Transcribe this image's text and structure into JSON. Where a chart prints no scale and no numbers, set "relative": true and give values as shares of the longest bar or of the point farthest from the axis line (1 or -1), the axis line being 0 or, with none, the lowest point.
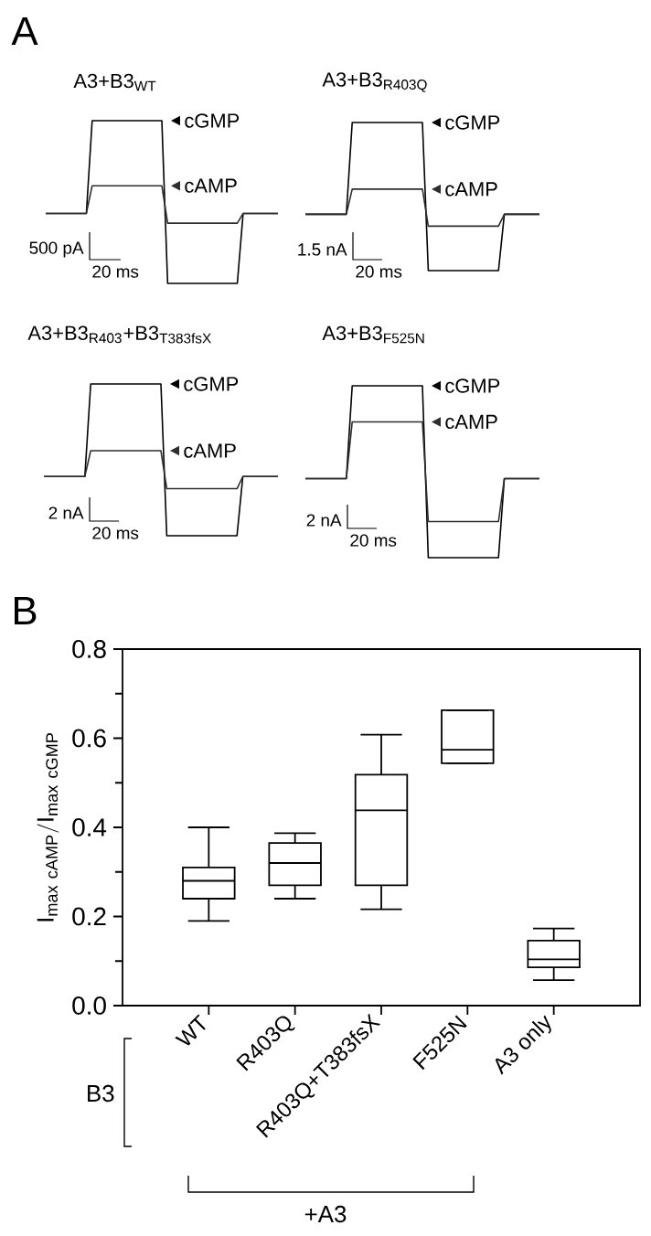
{
  "chart_data": [
    {
      "type": "line",
      "relative": true,
      "legend": "right",
      "title": "A3+B3$_{WT}$",
      "annotations": [
        "A",
        "500 pA",
        "20 ms"
      ],
      "categories": [
        null,
        null,
        null,
        null,
        null,
        null,
        null,
        null,
        null,
        null,
        null,
        null,
        null,
        null,
        null,
        null,
        null,
        null,
        null,
        null,
        null,
        null,
        null,
        null,
        null,
        null,
        null,
        null,
        null,
        null,
        null,
        null,
        null,
        null,
        null,
        null,
        null,
        null,
        null,
        null,
        null
      ],
      "series": [
        {
          "name": "cGMP",
          "color": "#000000",
          "values": [
            0.43,
            0.43,
            0.43,
            0.43,
            0.43,
            0.43,
            0.43,
            0.43,
            1,
            1,
            1,
            1,
            1,
            1,
            1,
            1,
            1,
            1,
            1,
            1,
            1,
            0,
            0,
            0,
            0,
            0,
            0,
            0,
            0,
            0,
            0,
            0,
            0,
            0,
            0.43,
            0.43,
            0.43,
            0.43,
            0.43,
            0.43,
            0.43
          ]
        },
        {
          "name": "cAMP",
          "color": "#2e2e2e",
          "values": [
            0.43,
            0.43,
            0.43,
            0.43,
            0.43,
            0.43,
            0.43,
            0.43,
            0.6,
            0.6,
            0.6,
            0.6,
            0.6,
            0.6,
            0.6,
            0.6,
            0.6,
            0.6,
            0.6,
            0.6,
            0.6,
            0.37,
            0.37,
            0.37,
            0.37,
            0.37,
            0.37,
            0.37,
            0.37,
            0.37,
            0.37,
            0.37,
            0.37,
            0.37,
            0.43,
            0.43,
            0.43,
            0.43,
            0.43,
            0.43,
            0.43
          ]
        }
      ]
    },
    {
      "type": "line",
      "relative": true,
      "legend": "right",
      "title": "A3+B3$_{R403Q}$",
      "annotations": [
        "1.5 nA",
        "20 ms"
      ],
      "categories": [
        null,
        null,
        null,
        null,
        null,
        null,
        null,
        null,
        null,
        null,
        null,
        null,
        null,
        null,
        null,
        null,
        null,
        null,
        null,
        null,
        null,
        null,
        null,
        null,
        null,
        null,
        null,
        null,
        null,
        null,
        null,
        null,
        null,
        null,
        null,
        null,
        null,
        null,
        null,
        null,
        null
      ],
      "series": [
        {
          "name": "cGMP",
          "color": "#000000",
          "values": [
            0.38,
            0.38,
            0.38,
            0.38,
            0.38,
            0.38,
            0.38,
            0.38,
            1,
            1,
            1,
            1,
            1,
            1,
            1,
            1,
            1,
            1,
            1,
            1,
            1,
            0,
            0,
            0,
            0,
            0,
            0,
            0,
            0,
            0,
            0,
            0,
            0,
            0,
            0.38,
            0.38,
            0.38,
            0.38,
            0.38,
            0.38,
            0.38
          ]
        },
        {
          "name": "cAMP",
          "color": "#2e2e2e",
          "values": [
            0.38,
            0.38,
            0.38,
            0.38,
            0.38,
            0.38,
            0.38,
            0.38,
            0.55,
            0.55,
            0.55,
            0.55,
            0.55,
            0.55,
            0.55,
            0.55,
            0.55,
            0.55,
            0.55,
            0.55,
            0.55,
            0.3,
            0.3,
            0.3,
            0.3,
            0.3,
            0.3,
            0.3,
            0.3,
            0.3,
            0.3,
            0.3,
            0.3,
            0.3,
            0.38,
            0.38,
            0.38,
            0.38,
            0.38,
            0.38,
            0.38
          ]
        }
      ]
    },
    {
      "type": "line",
      "relative": true,
      "legend": "right",
      "title": "A3+B3$_{R403}$+B3$_{T383fsX}$",
      "annotations": [
        "2 nA",
        "20 ms"
      ],
      "categories": [
        null,
        null,
        null,
        null,
        null,
        null,
        null,
        null,
        null,
        null,
        null,
        null,
        null,
        null,
        null,
        null,
        null,
        null,
        null,
        null,
        null,
        null,
        null,
        null,
        null,
        null,
        null,
        null,
        null,
        null,
        null,
        null,
        null,
        null,
        null,
        null,
        null,
        null,
        null,
        null,
        null
      ],
      "series": [
        {
          "name": "cGMP",
          "color": "#000000",
          "values": [
            0.39,
            0.39,
            0.39,
            0.39,
            0.39,
            0.39,
            0.39,
            0.39,
            1,
            1,
            1,
            1,
            1,
            1,
            1,
            1,
            1,
            1,
            1,
            1,
            1,
            0,
            0,
            0,
            0,
            0,
            0,
            0,
            0,
            0,
            0,
            0,
            0,
            0,
            0.39,
            0.39,
            0.39,
            0.39,
            0.39,
            0.39,
            0.39
          ]
        },
        {
          "name": "cAMP",
          "color": "#2e2e2e",
          "values": [
            0.39,
            0.39,
            0.39,
            0.39,
            0.39,
            0.39,
            0.39,
            0.39,
            0.56,
            0.56,
            0.56,
            0.56,
            0.56,
            0.56,
            0.56,
            0.56,
            0.56,
            0.56,
            0.56,
            0.56,
            0.56,
            0.31,
            0.31,
            0.31,
            0.31,
            0.31,
            0.31,
            0.31,
            0.31,
            0.31,
            0.31,
            0.31,
            0.31,
            0.31,
            0.39,
            0.39,
            0.39,
            0.39,
            0.39,
            0.39,
            0.39
          ]
        }
      ]
    },
    {
      "type": "line",
      "relative": true,
      "legend": "right",
      "title": "A3+B3$_{F525N}$",
      "annotations": [
        "2 nA",
        "20 ms"
      ],
      "categories": [
        null,
        null,
        null,
        null,
        null,
        null,
        null,
        null,
        null,
        null,
        null,
        null,
        null,
        null,
        null,
        null,
        null,
        null,
        null,
        null,
        null,
        null,
        null,
        null,
        null,
        null,
        null,
        null,
        null,
        null,
        null,
        null,
        null,
        null,
        null,
        null,
        null,
        null,
        null,
        null,
        null
      ],
      "series": [
        {
          "name": "cGMP",
          "color": "#000000",
          "values": [
            0.46,
            0.46,
            0.46,
            0.46,
            0.46,
            0.46,
            0.46,
            0.46,
            1,
            1,
            1,
            1,
            1,
            1,
            1,
            1,
            1,
            1,
            1,
            1,
            1,
            0,
            0,
            0,
            0,
            0,
            0,
            0,
            0,
            0,
            0,
            0,
            0,
            0,
            0.46,
            0.46,
            0.46,
            0.46,
            0.46,
            0.46,
            0.46
          ]
        },
        {
          "name": "cAMP",
          "color": "#2e2e2e",
          "values": [
            0.46,
            0.46,
            0.46,
            0.46,
            0.46,
            0.46,
            0.46,
            0.46,
            0.79,
            0.79,
            0.79,
            0.79,
            0.79,
            0.79,
            0.79,
            0.79,
            0.79,
            0.79,
            0.79,
            0.79,
            0.79,
            0.21,
            0.21,
            0.21,
            0.21,
            0.21,
            0.21,
            0.21,
            0.21,
            0.21,
            0.21,
            0.21,
            0.21,
            0.21,
            0.46,
            0.46,
            0.46,
            0.46,
            0.46,
            0.46,
            0.46
          ]
        }
      ]
    },
    {
      "type": "box",
      "ylabel": "\\mathrm{I}_{\\mathrm{max\\ cAMP}}/\\mathrm{I}_{\\mathrm{max\\ cGMP}}",
      "annotations": [
        "B",
        "B3",
        "+A3"
      ],
      "categories": [
        "WT",
        "R403Q",
        "R403Q+T383fsX",
        "F525N",
        "A3 only"
      ],
      "ylim": [
        0,
        0.8
      ],
      "yticks": [
        {
          "value": 0,
          "label": "0.0"
        },
        0.2,
        0.4,
        0.6,
        0.8
      ],
      "boxes": [
        {
          "low": 0.19,
          "q1": 0.24,
          "median": 0.28,
          "q3": 0.31,
          "high": 0.4
        },
        {
          "low": 0.24,
          "q1": 0.27,
          "median": 0.32,
          "q3": 0.365,
          "high": 0.387
        },
        {
          "low": 0.216,
          "q1": 0.27,
          "median": 0.438,
          "q3": 0.518,
          "high": 0.608
        },
        {
          "low": 0.544,
          "q1": 0.544,
          "median": 0.574,
          "q3": 0.663,
          "high": 0.663
        },
        {
          "low": 0.057,
          "q1": 0.086,
          "median": 0.104,
          "q3": 0.146,
          "high": 0.173
        }
      ]
    }
  ]
}
